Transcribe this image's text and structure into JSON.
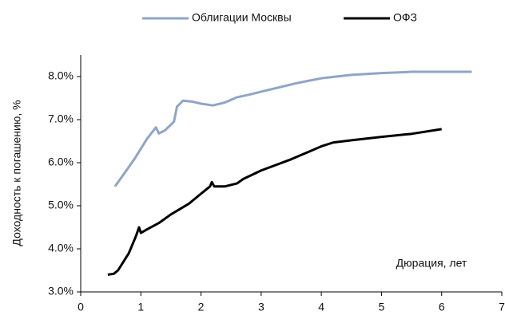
{
  "chart_data": {
    "type": "line",
    "ylabel": "Доходность к погашению, %",
    "annotation": "Дюрация, лет",
    "xlim": [
      0,
      7
    ],
    "xticks": [
      0,
      1,
      2,
      3,
      4,
      5,
      6,
      7
    ],
    "ylim": [
      3,
      8.5
    ],
    "yticks": [
      {
        "value": 3,
        "label": "3.0%"
      },
      {
        "value": 4,
        "label": "4.0%"
      },
      {
        "value": 5,
        "label": "5.0%"
      },
      {
        "value": 6,
        "label": "6.0%"
      },
      {
        "value": 7,
        "label": "7.0%"
      },
      {
        "value": 8,
        "label": "8.0%"
      }
    ],
    "grid": false,
    "legend": "top",
    "series": [
      {
        "name": "Облигации Москвы",
        "color": "#8fa5c8",
        "x": [
          0.57,
          0.75,
          0.9,
          1.1,
          1.25,
          1.3,
          1.4,
          1.55,
          1.6,
          1.7,
          1.85,
          2.0,
          2.2,
          2.4,
          2.6,
          2.8,
          3.0,
          3.3,
          3.6,
          4.0,
          4.5,
          5.0,
          5.5,
          6.0,
          6.5
        ],
        "values": [
          5.45,
          5.8,
          6.1,
          6.55,
          6.82,
          6.68,
          6.75,
          6.95,
          7.3,
          7.44,
          7.42,
          7.37,
          7.33,
          7.4,
          7.52,
          7.58,
          7.65,
          7.75,
          7.85,
          7.96,
          8.04,
          8.08,
          8.11,
          8.11,
          8.11
        ]
      },
      {
        "name": "ОФЗ",
        "color": "#000000",
        "x": [
          0.45,
          0.55,
          0.62,
          0.8,
          0.92,
          0.97,
          1.0,
          1.1,
          1.3,
          1.5,
          1.8,
          2.0,
          2.15,
          2.18,
          2.22,
          2.4,
          2.6,
          2.7,
          3.0,
          3.5,
          4.0,
          4.2,
          4.5,
          5.0,
          5.5,
          6.0
        ],
        "values": [
          3.4,
          3.42,
          3.5,
          3.9,
          4.3,
          4.5,
          4.37,
          4.45,
          4.6,
          4.8,
          5.05,
          5.28,
          5.45,
          5.55,
          5.45,
          5.45,
          5.52,
          5.62,
          5.82,
          6.08,
          6.38,
          6.47,
          6.52,
          6.6,
          6.67,
          6.78
        ]
      }
    ]
  }
}
